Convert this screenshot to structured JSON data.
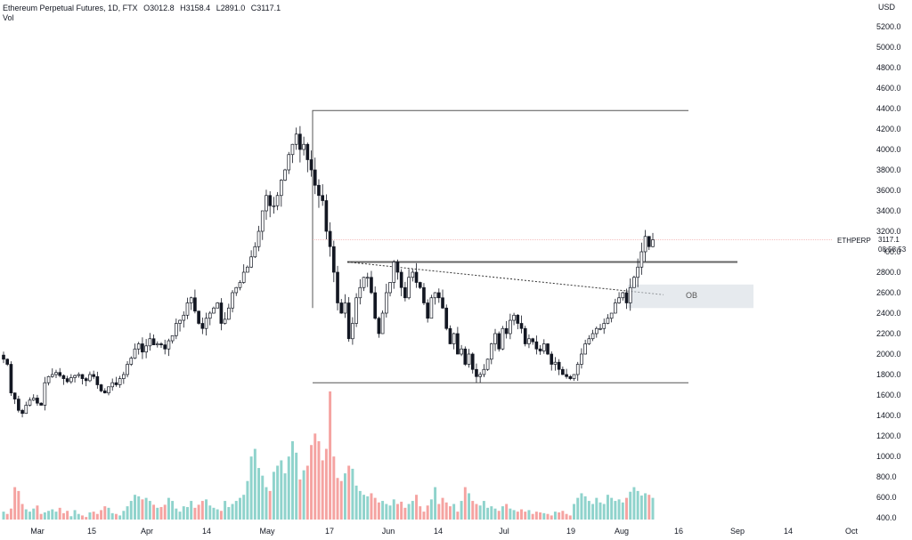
{
  "legend": {
    "symbol": "Ethereum Perpetual Futures, 1D, FTX",
    "open": "O3012.8",
    "high": "H3158.4",
    "low": "L2891.0",
    "close": "C3117.1",
    "vol": "Vol"
  },
  "currency": "USD",
  "price_tag": {
    "symbol": "ETHPERP",
    "value": "3117.1",
    "countdown": "08:58:53"
  },
  "ob_label": "OB",
  "chart_data": {
    "type": "candlestick",
    "title": "Ethereum Perpetual Futures, 1D, FTX",
    "y_ticks": [
      400,
      600,
      800,
      1000,
      1200,
      1400,
      1600,
      1800,
      2000,
      2200,
      2400,
      2600,
      2800,
      3000,
      3200,
      3400,
      3600,
      3800,
      4000,
      4200,
      4400,
      4600,
      4800,
      5000,
      5200
    ],
    "y_tick_labels": [
      "400.0",
      "600.0",
      "800.0",
      "1000.0",
      "1200.0",
      "1400.0",
      "1600.0",
      "1800.0",
      "2000.0",
      "2200.0",
      "2400.0",
      "2600.0",
      "2800.0",
      "3000.0",
      "3200.0",
      "3400.0",
      "3600.0",
      "3800.0",
      "4000.0",
      "4200.0",
      "4400.0",
      "4600.0",
      "4800.0",
      "5000.0",
      "5200.0"
    ],
    "x_ticks": [
      "Mar",
      "15",
      "Apr",
      "14",
      "May",
      "17",
      "Jun",
      "14",
      "Jul",
      "19",
      "Aug",
      "16",
      "Sep",
      "14",
      "Oct"
    ],
    "ylim": [
      320,
      5400
    ],
    "colors": {
      "up": "#26a69a",
      "down": "#ef5350",
      "candle": "#131722",
      "vol_up": "#8fd3cc",
      "vol_down": "#f5a3a1"
    },
    "price_series": [
      1950,
      1900,
      1620,
      1560,
      1450,
      1420,
      1500,
      1550,
      1570,
      1520,
      1500,
      1720,
      1780,
      1800,
      1820,
      1790,
      1760,
      1730,
      1770,
      1790,
      1800,
      1760,
      1740,
      1800,
      1780,
      1700,
      1640,
      1620,
      1680,
      1720,
      1700,
      1760,
      1800,
      1900,
      1960,
      2050,
      2100,
      2020,
      2080,
      2150,
      2090,
      2100,
      2090,
      2050,
      2130,
      2180,
      2300,
      2330,
      2380,
      2500,
      2550,
      2420,
      2300,
      2250,
      2350,
      2400,
      2450,
      2500,
      2300,
      2340,
      2450,
      2600,
      2650,
      2700,
      2800,
      2850,
      2950,
      3050,
      3200,
      3400,
      3550,
      3450,
      3450,
      3550,
      3700,
      3800,
      3950,
      4050,
      4150,
      4000,
      4050,
      3900,
      3800,
      3650,
      3550,
      3500,
      3200,
      3050,
      2800,
      2500,
      2400,
      2500,
      2150,
      2300,
      2550,
      2650,
      2750,
      2750,
      2600,
      2350,
      2200,
      2400,
      2600,
      2700,
      2900,
      2800,
      2650,
      2550,
      2750,
      2800,
      2700,
      2650,
      2500,
      2350,
      2550,
      2600,
      2550,
      2450,
      2250,
      2100,
      2200,
      2000,
      2050,
      1900,
      2000,
      1850,
      1780,
      1800,
      1850,
      1950,
      2100,
      2200,
      2050,
      2250,
      2200,
      2330,
      2380,
      2300,
      2250,
      2100,
      2150,
      2120,
      2050,
      2030,
      2100,
      2000,
      1900,
      1920,
      1850,
      1800,
      1780,
      1760,
      1800,
      1900,
      2000,
      2100,
      2150,
      2200,
      2250,
      2250,
      2300,
      2350,
      2400,
      2500,
      2550,
      2600,
      2500,
      2650,
      2750,
      2850,
      3000,
      3150,
      3050,
      3117
    ],
    "volume": [
      380,
      350,
      420,
      700,
      650,
      480,
      410,
      380,
      420,
      460,
      350,
      370,
      390,
      410,
      380,
      430,
      360,
      390,
      320,
      400,
      350,
      330,
      310,
      370,
      380,
      350,
      400,
      450,
      430,
      360,
      350,
      330,
      390,
      450,
      520,
      600,
      580,
      540,
      560,
      520,
      470,
      430,
      440,
      470,
      560,
      520,
      420,
      380,
      450,
      440,
      520,
      430,
      470,
      520,
      540,
      460,
      430,
      410,
      390,
      520,
      440,
      480,
      520,
      560,
      600,
      780,
      1100,
      1200,
      950,
      850,
      700,
      650,
      900,
      980,
      1050,
      880,
      1100,
      1300,
      1150,
      800,
      920,
      980,
      1250,
      1400,
      1300,
      1050,
      1200,
      1950,
      1100,
      820,
      780,
      880,
      980,
      940,
      720,
      650,
      600,
      580,
      620,
      560,
      500,
      520,
      480,
      460,
      540,
      480,
      510,
      430,
      480,
      520,
      600,
      450,
      380,
      460,
      540,
      700,
      480,
      560,
      500,
      450,
      480,
      380,
      520,
      700,
      620,
      520,
      480,
      460,
      520,
      430,
      450,
      420,
      390,
      450,
      480,
      420,
      400,
      380,
      410,
      380,
      400,
      350,
      380,
      370,
      360,
      350,
      330,
      380,
      370,
      390,
      350,
      330,
      480,
      560,
      620,
      580,
      520,
      480,
      560,
      500,
      480,
      600,
      560,
      520,
      540,
      500,
      560,
      640,
      700,
      650,
      590,
      620,
      600,
      560
    ],
    "resistance_top": 4380,
    "support_bottom": 1720,
    "neckline": 2900,
    "current_line": 3117,
    "ob_zone": [
      2450,
      2680
    ]
  }
}
